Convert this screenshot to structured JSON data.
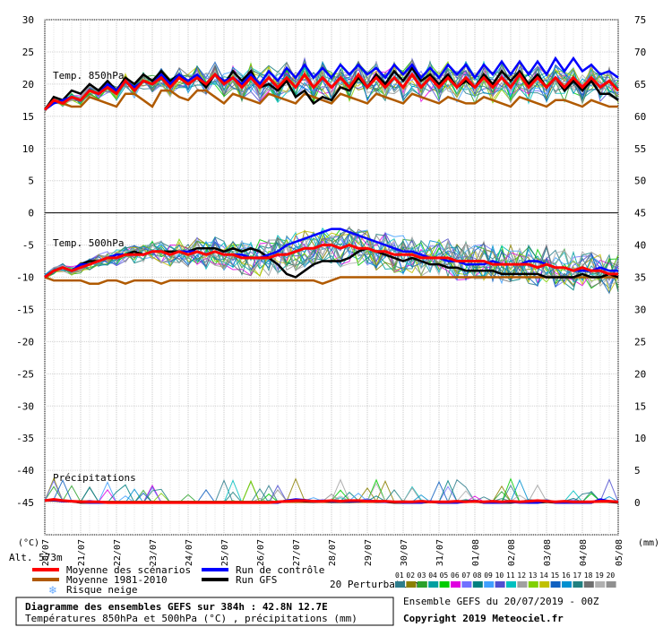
{
  "chart_data": {
    "type": "line",
    "title": "Diagramme des ensembles GEFS sur 384h : 42.8N 12.7E",
    "subtitle": "Températures 850hPa et 500hPa (°C) , précipitations (mm)",
    "run_info": "Ensemble GEFS du 20/07/2019 - 00Z",
    "copyright": "Copyright 2019 Meteociel.fr",
    "altitude": "Alt. 573m",
    "left_axis_unit": "(°C)",
    "right_axis_unit": "(mm)",
    "left_ticks": [
      "30",
      "25",
      "20",
      "15",
      "10",
      "5",
      "0",
      "-5",
      "-10",
      "-15",
      "-20",
      "-25",
      "-30",
      "-35",
      "-40",
      "-45"
    ],
    "right_ticks": [
      "75",
      "70",
      "65",
      "60",
      "55",
      "50",
      "45",
      "40",
      "35",
      "30",
      "25",
      "20",
      "15",
      "10",
      "5",
      "0"
    ],
    "ylim": [
      -50,
      30
    ],
    "x_labels": [
      "20/07",
      "21/07",
      "22/07",
      "23/07",
      "24/07",
      "25/07",
      "26/07",
      "27/07",
      "28/07",
      "29/07",
      "30/07",
      "31/07",
      "01/08",
      "02/08",
      "03/08",
      "04/08",
      "05/08"
    ],
    "panels": {
      "t850": "Temp. 850hPa",
      "t500": "Temp. 500hPa",
      "precip": "Précipitations"
    },
    "series": [
      {
        "name": "Moyenne des scénarios",
        "color": "#ff0000",
        "t850": [
          16,
          17.5,
          17,
          18,
          17.5,
          19,
          18.5,
          19.5,
          18.5,
          20.5,
          19,
          20.5,
          20,
          21,
          19.5,
          21,
          20,
          21,
          20,
          21.5,
          20,
          21,
          19.5,
          21,
          19.5,
          21,
          19.5,
          21,
          19.5,
          21.5,
          19.5,
          21,
          19.5,
          21,
          19.5,
          21.5,
          19.5,
          21,
          19.5,
          21,
          19.5,
          21.5,
          19.5,
          21,
          19.5,
          21,
          19.5,
          21,
          19.5,
          21,
          19.5,
          21,
          19.5,
          21.5,
          19.5,
          21,
          19.5,
          21,
          19.5,
          21,
          19.5,
          21,
          19.5,
          20.5,
          19
        ],
        "t500": [
          -10,
          -9,
          -8.5,
          -9,
          -8.5,
          -8,
          -7.5,
          -7,
          -7,
          -6.5,
          -6.5,
          -6.5,
          -6,
          -6,
          -6.5,
          -6,
          -6.5,
          -6,
          -6.5,
          -6,
          -6.5,
          -6.5,
          -7,
          -7,
          -7,
          -7,
          -6.5,
          -6.5,
          -6,
          -5.5,
          -5.5,
          -5,
          -5,
          -5.5,
          -5,
          -5.5,
          -5.5,
          -6,
          -6,
          -6.5,
          -6.5,
          -6.5,
          -7,
          -7,
          -7,
          -7,
          -7.5,
          -7.5,
          -7.5,
          -7.5,
          -8,
          -8,
          -8,
          -8,
          -8,
          -8.5,
          -8,
          -8.5,
          -8.5,
          -9,
          -8.5,
          -9,
          -9,
          -9.5,
          -9.5
        ],
        "precip": [
          0.3,
          0.5,
          0.3,
          0.2,
          0.1,
          0.1,
          0.1,
          0,
          0,
          0,
          0,
          0,
          0,
          0,
          0,
          0,
          0,
          0,
          0,
          0,
          0,
          0,
          0,
          0,
          0,
          0,
          0.1,
          0.2,
          0.3,
          0.3,
          0.2,
          0.2,
          0.3,
          0.2,
          0.3,
          0.3,
          0.2,
          0.2,
          0.2,
          0.1,
          0.1,
          0.1,
          0.2,
          0.1,
          0.1,
          0.1,
          0.2,
          0.1,
          0.2,
          0.1,
          0.2,
          0.1,
          0.2,
          0.1,
          0.2,
          0.3,
          0.2,
          0.1,
          0.2,
          0.1,
          0.1,
          0.1,
          0.2,
          0.2,
          0.1
        ]
      },
      {
        "name": "Moyenne 1981-2010",
        "color": "#b05a00",
        "t850": [
          16,
          17.5,
          17,
          16.5,
          16.5,
          18,
          17.5,
          17,
          16.5,
          18.5,
          18.5,
          17.5,
          16.5,
          19,
          19,
          18,
          17.5,
          19,
          19,
          18,
          17,
          18.5,
          18,
          17.5,
          17,
          18.5,
          18,
          17.5,
          17,
          18.5,
          18,
          17.5,
          17,
          18.5,
          18,
          17.5,
          17,
          18.5,
          18,
          17.5,
          17,
          18.5,
          18,
          17.5,
          17,
          18,
          17.5,
          17,
          17,
          18,
          17.5,
          17,
          16.5,
          18,
          17.5,
          17,
          16.5,
          17.5,
          17.5,
          17,
          16.5,
          17.5,
          17,
          16.5,
          16.5
        ],
        "t500": [
          -10,
          -10.5,
          -10.5,
          -10.5,
          -10.5,
          -11,
          -11,
          -10.5,
          -10.5,
          -11,
          -10.5,
          -10.5,
          -10.5,
          -11,
          -10.5,
          -10.5,
          -10.5,
          -10.5,
          -10.5,
          -10.5,
          -10.5,
          -10.5,
          -10.5,
          -10.5,
          -10.5,
          -10.5,
          -10.5,
          -10.5,
          -10.5,
          -10.5,
          -10.5,
          -11,
          -10.5,
          -10,
          -10,
          -10,
          -10,
          -10,
          -10,
          -10,
          -10,
          -10,
          -10,
          -10,
          -10,
          -10,
          -10,
          -10,
          -10,
          -10,
          -10,
          -10,
          -10,
          -10,
          -10,
          -10,
          -10,
          -10,
          -10,
          -10,
          -10,
          -10,
          -10,
          -10,
          -10
        ],
        "precip": [
          0.3,
          0.3,
          0.2,
          0.2,
          0.2,
          0.1,
          0.1,
          0.1,
          0.1,
          0.1,
          0.1,
          0.1,
          0.1,
          0.1,
          0.1,
          0.1,
          0.1,
          0.1,
          0.1,
          0.1,
          0.1,
          0.1,
          0.1,
          0.1,
          0.1,
          0.1,
          0.1,
          0.1,
          0.1,
          0.1,
          0.1,
          0.1,
          0.1,
          0.1,
          0.1,
          0.1,
          0.1,
          0.1,
          0.1,
          0.1,
          0.1,
          0.1,
          0.1,
          0.1,
          0.1,
          0.1,
          0.1,
          0.1,
          0.1,
          0.1,
          0.1,
          0.1,
          0.1,
          0.1,
          0.1,
          0.1,
          0.1,
          0.1,
          0.1,
          0.1,
          0.1,
          0.1,
          0.1,
          0.1,
          0.1
        ]
      },
      {
        "name": "Run de contrôle",
        "color": "#0000ff",
        "t850": [
          16,
          17,
          17.5,
          18,
          17.5,
          19,
          18.5,
          20,
          19,
          20.5,
          19.5,
          20.5,
          20,
          21.5,
          20,
          21.5,
          20.5,
          21.5,
          20,
          21.5,
          20.5,
          21,
          20,
          21.5,
          20,
          22,
          20.5,
          22.5,
          21,
          23,
          21,
          22.5,
          21,
          23,
          21.5,
          23,
          21.5,
          22.5,
          21,
          23,
          21.5,
          23,
          21,
          22.5,
          21,
          23,
          21.5,
          23,
          21,
          23,
          21.5,
          23.5,
          21.5,
          23.5,
          21.5,
          23.5,
          21.5,
          24,
          22,
          24,
          22,
          23,
          21.5,
          22,
          21
        ],
        "t500": [
          -10,
          -9,
          -8.5,
          -9,
          -8,
          -8,
          -7.5,
          -7,
          -6.5,
          -6.5,
          -6.5,
          -6.5,
          -6,
          -6,
          -6.5,
          -6,
          -6,
          -6,
          -6.5,
          -6,
          -6.5,
          -6.5,
          -6.5,
          -7,
          -7,
          -6.5,
          -6,
          -5,
          -4.5,
          -4,
          -3.5,
          -3,
          -2.5,
          -2.5,
          -3,
          -3.5,
          -4,
          -4.5,
          -5,
          -5.5,
          -6,
          -6,
          -6.5,
          -7,
          -7,
          -7.5,
          -7.5,
          -8,
          -8,
          -8,
          -7.5,
          -8,
          -8,
          -8,
          -7.5,
          -7.5,
          -8,
          -8.5,
          -8.5,
          -9,
          -9,
          -9,
          -8.5,
          -9,
          -9
        ],
        "precip": [
          0.3,
          0.4,
          0.2,
          0.2,
          0.1,
          0,
          0,
          0,
          0,
          0,
          0,
          0,
          0,
          0,
          0,
          0,
          0,
          0,
          0,
          0,
          0,
          0,
          0,
          0,
          0,
          0,
          0,
          0.3,
          0.5,
          0.4,
          0.2,
          0.3,
          0.2,
          0.2,
          0.2,
          0.2,
          0.3,
          0.2,
          0.1,
          0.1,
          0,
          0,
          0,
          0.2,
          0,
          0,
          0,
          0.1,
          0.3,
          0,
          0,
          0,
          0.1,
          0,
          0,
          0,
          0.3,
          0,
          0,
          0,
          0,
          0,
          0.5,
          0.2,
          0.1
        ]
      },
      {
        "name": "Run GFS",
        "color": "#000000",
        "t850": [
          16,
          18,
          17.5,
          19,
          18.5,
          20,
          19,
          20.5,
          19,
          21,
          20,
          21.5,
          20.5,
          22,
          20.5,
          21.5,
          20,
          21,
          19.5,
          21.5,
          20,
          22,
          20.5,
          22,
          19.5,
          20,
          19,
          20.5,
          18,
          19,
          17,
          18,
          17.5,
          19.5,
          19,
          21,
          19.5,
          21.5,
          20,
          22,
          20.5,
          22.5,
          20.5,
          21.5,
          20,
          21.5,
          19.5,
          20.5,
          19.5,
          21.5,
          20,
          22,
          20.5,
          22,
          20,
          21.5,
          19.5,
          21,
          19,
          20.5,
          19,
          20.5,
          18.5,
          18.5,
          17.5
        ],
        "t500": [
          -10,
          -9,
          -8.5,
          -9,
          -8,
          -7.5,
          -7.5,
          -7,
          -6.5,
          -6.5,
          -6,
          -6.5,
          -6,
          -6,
          -6,
          -6,
          -6,
          -5.5,
          -5.5,
          -5.5,
          -6,
          -5.5,
          -6,
          -5.5,
          -6,
          -7,
          -8,
          -9.5,
          -10,
          -9,
          -8,
          -7.5,
          -7.5,
          -7.5,
          -7,
          -6,
          -5.5,
          -6,
          -6.5,
          -7,
          -7.5,
          -7,
          -7.5,
          -8,
          -8,
          -8.5,
          -8.5,
          -9,
          -9,
          -9,
          -9,
          -9.5,
          -9.5,
          -9.5,
          -9.5,
          -9.5,
          -10,
          -10,
          -10,
          -10,
          -9.5,
          -10,
          -10,
          -9.5,
          -10
        ],
        "precip": [
          0.3,
          0.4,
          0.3,
          0.2,
          0,
          0,
          0,
          0,
          0,
          0,
          0,
          0,
          0,
          0,
          0,
          0,
          0,
          0,
          0,
          0,
          0,
          0,
          0,
          0,
          0,
          0,
          0,
          0.3,
          0.4,
          0.2,
          0.1,
          0.2,
          0.1,
          0.1,
          0.1,
          0.2,
          0.3,
          0.1,
          0.1,
          0,
          0,
          0,
          0,
          0.1,
          0,
          0,
          0,
          0.2,
          0.2,
          0,
          0,
          0,
          0,
          0.1,
          0,
          0,
          0.1,
          0,
          0,
          0,
          0,
          0,
          0.4,
          0.1,
          0
        ]
      }
    ],
    "legend": [
      {
        "label": "Moyenne des scénarios",
        "color": "#ff0000"
      },
      {
        "label": "Run de contrôle",
        "color": "#0000ff"
      },
      {
        "label": "Moyenne 1981-2010",
        "color": "#b05a00"
      },
      {
        "label": "Run GFS",
        "color": "#000000"
      },
      {
        "label": "Risque neige",
        "color": "#66aaff",
        "icon": "snowflake-icon"
      }
    ],
    "perturbations": {
      "label": "20 Perturbations",
      "ids": [
        "01",
        "02",
        "03",
        "04",
        "05",
        "06",
        "07",
        "08",
        "09",
        "10",
        "11",
        "12",
        "13",
        "14",
        "15",
        "16",
        "17",
        "18",
        "19",
        "20"
      ],
      "colors": [
        "#2e7d8c",
        "#8b8000",
        "#2aa02a",
        "#00a0a0",
        "#00cc00",
        "#e000e0",
        "#7070ff",
        "#008080",
        "#40a0ff",
        "#5050d0",
        "#00c0c0",
        "#a0a0a0",
        "#80d000",
        "#c0c000",
        "#1060c0",
        "#0090d0",
        "#208080",
        "#707070",
        "#b0b0b0",
        "#909090"
      ]
    }
  }
}
